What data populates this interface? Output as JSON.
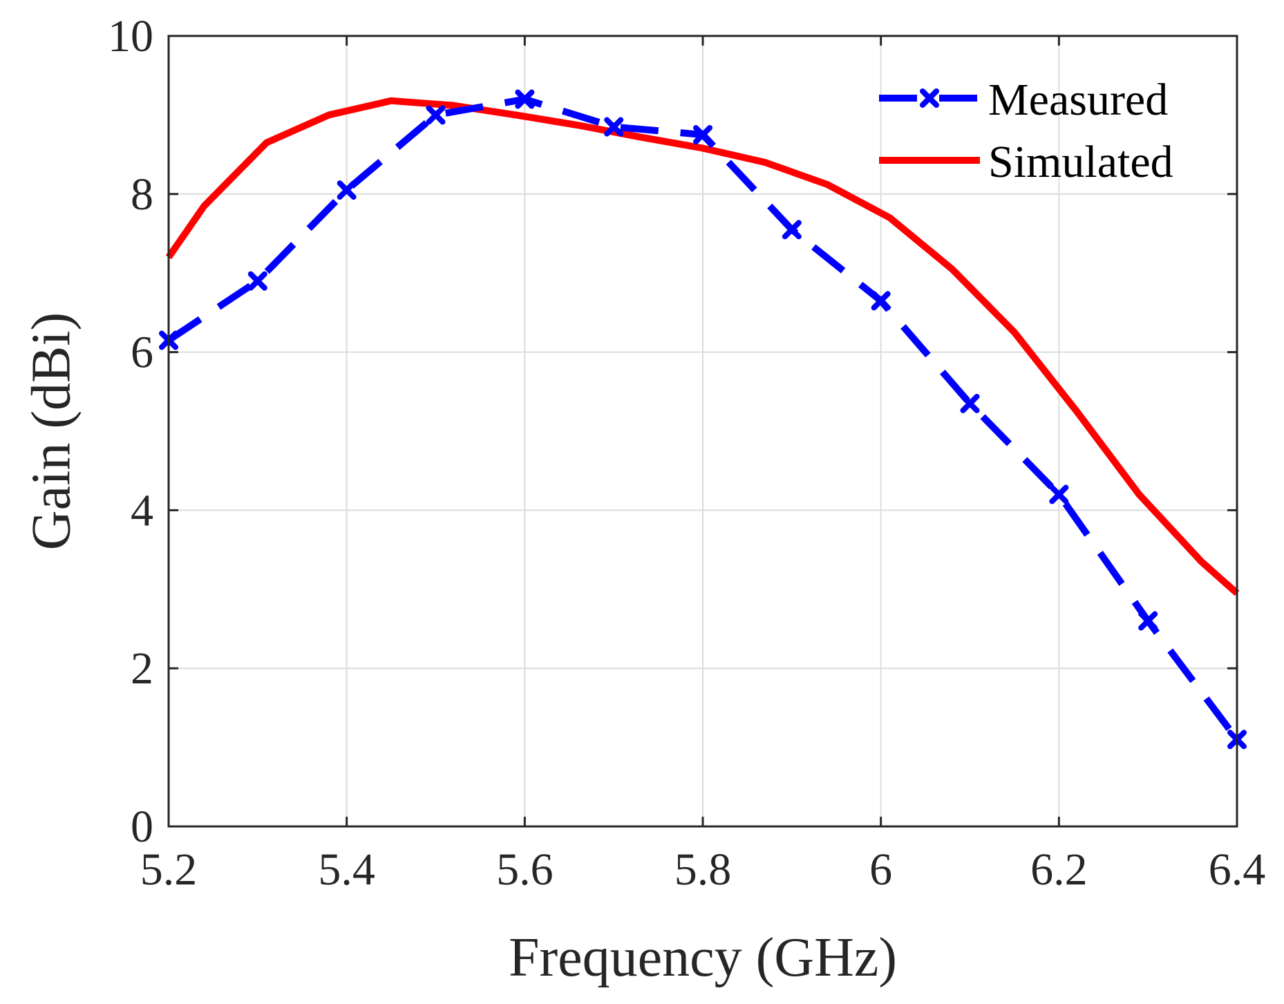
{
  "chart_data": {
    "type": "line",
    "title": "",
    "xlabel": "Frequency (GHz)",
    "ylabel": "Gain (dBi)",
    "xlim": [
      5.2,
      6.4
    ],
    "ylim": [
      0,
      10
    ],
    "xticks": [
      5.2,
      5.4,
      5.6,
      5.8,
      6.0,
      6.2,
      6.4
    ],
    "xtick_labels": [
      "5.2",
      "5.4",
      "5.6",
      "5.8",
      "6",
      "6.2",
      "6.4"
    ],
    "yticks": [
      0,
      2,
      4,
      6,
      8,
      10
    ],
    "ytick_labels": [
      "0",
      "2",
      "4",
      "6",
      "8",
      "10"
    ],
    "grid": true,
    "legend_position": "top-right",
    "series": [
      {
        "name": "Measured",
        "color": "#0000ff",
        "style": "dashed",
        "marker": "x",
        "x": [
          5.2,
          5.3,
          5.4,
          5.5,
          5.6,
          5.7,
          5.8,
          5.9,
          6.0,
          6.1,
          6.2,
          6.3,
          6.4
        ],
        "y": [
          6.15,
          6.9,
          8.05,
          9.0,
          9.2,
          8.85,
          8.75,
          7.55,
          6.65,
          5.35,
          4.2,
          2.6,
          1.1
        ]
      },
      {
        "name": "Simulated",
        "color": "#ff0000",
        "style": "solid",
        "marker": "none",
        "x": [
          5.2,
          5.24,
          5.31,
          5.38,
          5.45,
          5.52,
          5.59,
          5.66,
          5.73,
          5.8,
          5.87,
          5.94,
          6.01,
          6.08,
          6.15,
          6.22,
          6.29,
          6.36,
          6.4
        ],
        "y": [
          7.2,
          7.85,
          8.65,
          9.0,
          9.18,
          9.12,
          9.0,
          8.87,
          8.72,
          8.58,
          8.4,
          8.12,
          7.7,
          7.05,
          6.25,
          5.25,
          4.2,
          3.35,
          2.95
        ]
      }
    ]
  }
}
